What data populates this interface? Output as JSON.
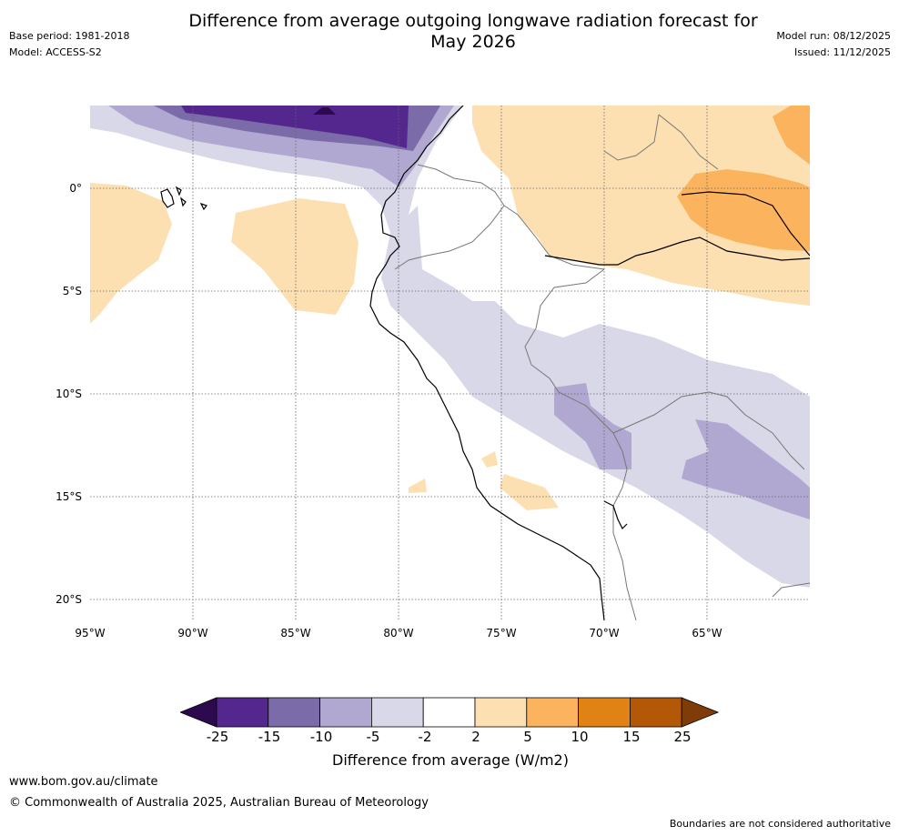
{
  "header": {
    "title_line1": "Difference from average outgoing longwave radiation forecast for",
    "title_line2": "May 2026",
    "base_period": "Base period: 1981-2018",
    "model": "Model: ACCESS-S2",
    "model_run": "Model run: 08/12/2025",
    "issued": "Issued: 11/12/2025"
  },
  "map": {
    "lat_labels": [
      "0°",
      "5°S",
      "10°S",
      "15°S",
      "20°S"
    ],
    "lon_labels": [
      "95°W",
      "90°W",
      "85°W",
      "80°W",
      "75°W",
      "70°W",
      "65°W"
    ],
    "lat_values": [
      0,
      -5,
      -10,
      -15,
      -20
    ],
    "lon_values": [
      -95,
      -90,
      -85,
      -80,
      -75,
      -70,
      -65
    ],
    "extent": {
      "lon_min": -95,
      "lon_max": -60,
      "lat_min": -21,
      "lat_max": 4
    }
  },
  "colorbar": {
    "ticks": [
      "-25",
      "-15",
      "-10",
      "-5",
      "-2",
      "2",
      "5",
      "10",
      "15",
      "25"
    ],
    "colors": [
      "#2d0a4e",
      "#54278f",
      "#7b6ba8",
      "#b0a8d0",
      "#d8d8e8",
      "#ffffff",
      "#fde0b2",
      "#fbb45d",
      "#e08214",
      "#b35806",
      "#7f3b08"
    ],
    "label": "Difference from average (W/m2)"
  },
  "footer": {
    "website": "www.bom.gov.au/climate",
    "copyright": "© Commonwealth of Australia 2025, Australian Bureau of Meteorology",
    "disclaimer": "Boundaries are not considered authoritative"
  }
}
